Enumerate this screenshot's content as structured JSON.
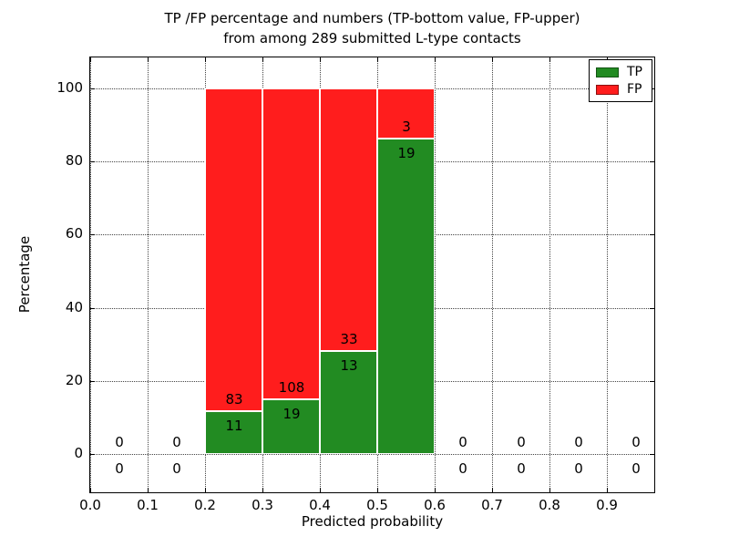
{
  "figure": {
    "title_line1": "TP /FP percentage and numbers (TP-bottom value, FP-upper)",
    "title_line2": "from among 289 submitted L-type contacts"
  },
  "chart_data": {
    "type": "bar",
    "subtype": "stacked-percentage-histogram",
    "title": "TP /FP percentage and numbers (TP-bottom value, FP-upper) from among 289 submitted L-type contacts",
    "xlabel": "Predicted probability",
    "ylabel": "Percentage",
    "total_contacts": 289,
    "x_ticks": [
      "0.0",
      "0.1",
      "0.2",
      "0.3",
      "0.4",
      "0.5",
      "0.6",
      "0.7",
      "0.8",
      "0.9"
    ],
    "x_tick_values": [
      0.0,
      0.1,
      0.2,
      0.3,
      0.4,
      0.5,
      0.6,
      0.7,
      0.8,
      0.9
    ],
    "y_ticks": [
      "0",
      "20",
      "40",
      "60",
      "80",
      "100"
    ],
    "y_tick_values": [
      0,
      20,
      40,
      60,
      80,
      100
    ],
    "xlim": [
      0,
      0.985
    ],
    "ylim": [
      -11,
      108.5
    ],
    "grid": "dotted both axes",
    "legend": {
      "position": "upper right",
      "entries": [
        {
          "label": "TP",
          "color": "#228B22"
        },
        {
          "label": "FP",
          "color": "#FF1D1D"
        }
      ]
    },
    "colors": {
      "tp": "#228B22",
      "fp": "#FF1D1D",
      "bar_edge": "#ffffff",
      "background": "#ffffff",
      "text": "#000000",
      "gridline": "#444444"
    },
    "bins": [
      {
        "x0": 0.0,
        "x1": 0.1,
        "tp": 0,
        "fp": 0
      },
      {
        "x0": 0.1,
        "x1": 0.2,
        "tp": 0,
        "fp": 0
      },
      {
        "x0": 0.2,
        "x1": 0.3,
        "tp": 11,
        "fp": 83
      },
      {
        "x0": 0.3,
        "x1": 0.4,
        "tp": 19,
        "fp": 108
      },
      {
        "x0": 0.4,
        "x1": 0.5,
        "tp": 13,
        "fp": 33
      },
      {
        "x0": 0.5,
        "x1": 0.6,
        "tp": 19,
        "fp": 3
      },
      {
        "x0": 0.6,
        "x1": 0.7,
        "tp": 0,
        "fp": 0
      },
      {
        "x0": 0.7,
        "x1": 0.8,
        "tp": 0,
        "fp": 0
      },
      {
        "x0": 0.8,
        "x1": 0.9,
        "tp": 0,
        "fp": 0
      },
      {
        "x0": 0.9,
        "x1": 1.0,
        "tp": 0,
        "fp": 0
      }
    ],
    "bar_meaning": "Each bar stacks to 100%; green bottom segment = TP share of bin, red upper segment = FP share; numbers printed are raw counts (TP below boundary, FP above boundary)"
  }
}
